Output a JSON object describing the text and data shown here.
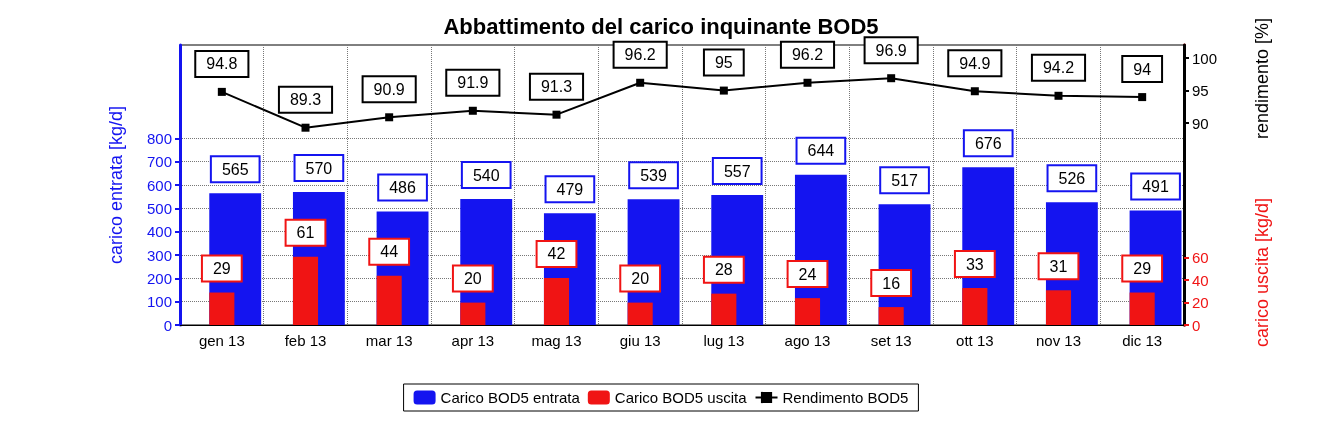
{
  "chart_data": {
    "type": "bar",
    "title": "Abbattimento del carico inquinante BOD5",
    "ylabel": "carico entrata [kg/d]",
    "y2label": "carico uscita [kg/d]",
    "y3label": "rendimento [%]",
    "categories": [
      "gen 13",
      "feb 13",
      "mar 13",
      "apr 13",
      "mag 13",
      "giu 13",
      "lug 13",
      "ago 13",
      "set 13",
      "ott 13",
      "nov 13",
      "dic 13"
    ],
    "series": [
      {
        "name": "Carico BOD5 entrata",
        "axis": "y",
        "color": "#1414f0",
        "values": [
          565,
          570,
          486,
          540,
          479,
          539,
          557,
          644,
          517,
          676,
          526,
          491
        ]
      },
      {
        "name": "Carico BOD5 uscita",
        "axis": "y2",
        "color": "#f01414",
        "values": [
          29,
          61,
          44,
          20,
          42,
          20,
          28,
          24,
          16,
          33,
          31,
          29
        ]
      },
      {
        "name": "Rendimento BOD5",
        "type": "line",
        "axis": "y3",
        "color": "#000000",
        "marker": "square",
        "line_style": "solid",
        "values": [
          94.8,
          89.3,
          90.9,
          91.9,
          91.3,
          96.2,
          95,
          96.2,
          96.9,
          94.9,
          94.2,
          94
        ]
      }
    ],
    "ylim": [
      0,
      1200
    ],
    "yticks": [
      0,
      100,
      200,
      300,
      400,
      500,
      600,
      700,
      800
    ],
    "y2lim": [
      0,
      250
    ],
    "y2ticks": [
      0,
      20,
      40,
      60
    ],
    "y3lim": [
      59,
      102
    ],
    "y3ticks": [
      90,
      95,
      100
    ],
    "data_labels": true,
    "grid": true,
    "legend": "bottom"
  }
}
